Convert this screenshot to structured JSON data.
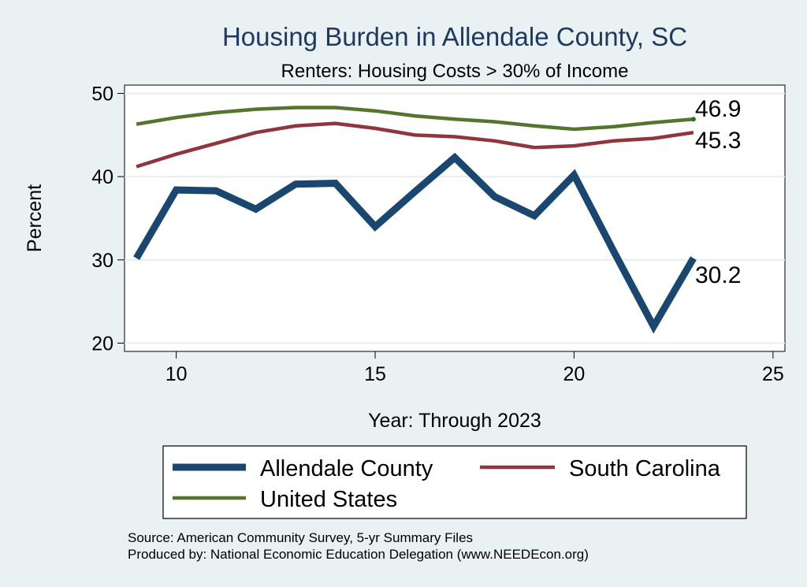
{
  "chart_data": {
    "type": "line",
    "title": "Housing Burden in Allendale County, SC",
    "subtitle": "Renters: Housing Costs > 30% of Income",
    "xlabel": "Year: Through 2023",
    "ylabel": "Percent",
    "xlim": [
      8.7,
      25.3
    ],
    "ylim": [
      19,
      51
    ],
    "xticks": [
      10,
      15,
      20,
      25
    ],
    "yticks": [
      20,
      30,
      40,
      50
    ],
    "grid": true,
    "legend_position": "bottom",
    "x": [
      9,
      10,
      11,
      12,
      13,
      14,
      15,
      16,
      17,
      18,
      19,
      20,
      21,
      22,
      23
    ],
    "series": [
      {
        "name": "Allendale County",
        "color": "#1a476f",
        "values": [
          30.2,
          38.4,
          38.3,
          36.1,
          39.1,
          39.2,
          34.0,
          38.2,
          42.3,
          37.6,
          35.3,
          40.2,
          31.0,
          22.0,
          30.2
        ],
        "end_label": "30.2"
      },
      {
        "name": "South Carolina",
        "color": "#90353b",
        "values": [
          41.2,
          42.7,
          44.0,
          45.3,
          46.1,
          46.4,
          45.8,
          45.0,
          44.8,
          44.3,
          43.5,
          43.7,
          44.3,
          44.6,
          45.3
        ],
        "end_label": "45.3"
      },
      {
        "name": "United States",
        "color": "#55752f",
        "values": [
          46.3,
          47.1,
          47.7,
          48.1,
          48.3,
          48.3,
          47.9,
          47.3,
          46.9,
          46.6,
          46.1,
          45.7,
          46.0,
          46.5,
          46.9
        ],
        "end_label": "46.9"
      }
    ],
    "footer": [
      "Source: American Community Survey, 5-yr Summary Files",
      "Produced by: National Economic Education Delegation (www.NEEDEcon.org)"
    ]
  }
}
